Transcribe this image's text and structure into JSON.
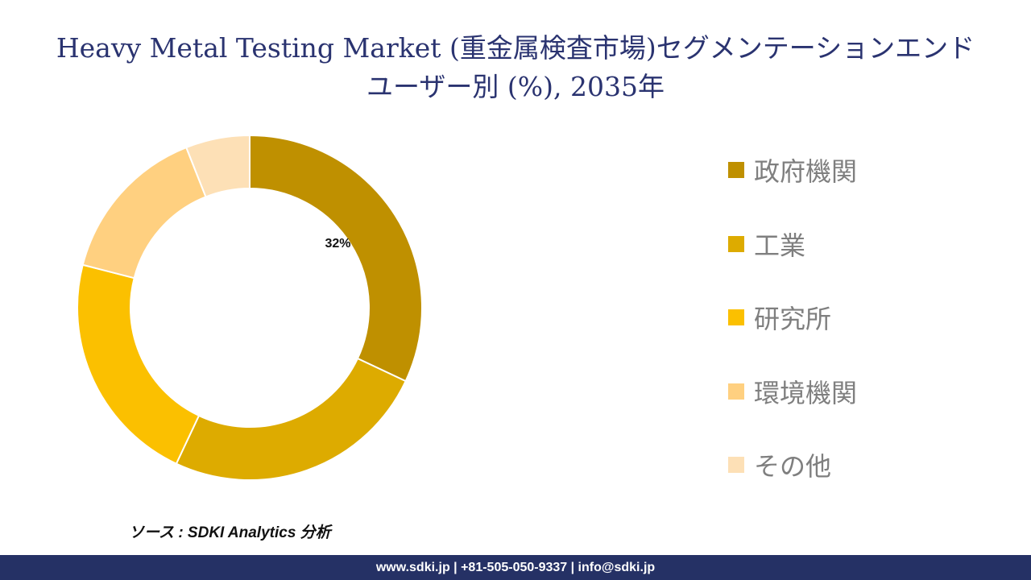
{
  "header": {
    "title_line1": "Heavy Metal Testing Market (重金属検査市場)セグメンテーションエンド",
    "title_line2": "ユーザー別 (%), 2035年"
  },
  "chart_data": {
    "type": "pie",
    "style": "donut",
    "title": "Heavy Metal Testing Market (重金属検査市場)セグメンテーションエンドユーザー別 (%), 2035年",
    "categories": [
      "政府機関",
      "工業",
      "研究所",
      "環境機関",
      "その他"
    ],
    "values": [
      32,
      25,
      22,
      15,
      6
    ],
    "data_labels": [
      "32%",
      "",
      "",
      "",
      ""
    ],
    "colors": [
      "#bf9000",
      "#ddab00",
      "#fbc000",
      "#ffd080",
      "#fde0b6"
    ],
    "legend_position": "right"
  },
  "source": {
    "text": "ソース : SDKI Analytics 分析"
  },
  "footer": {
    "text": "www.sdki.jp | +81-505-050-9337 | info@sdki.jp",
    "background": "#253165"
  }
}
